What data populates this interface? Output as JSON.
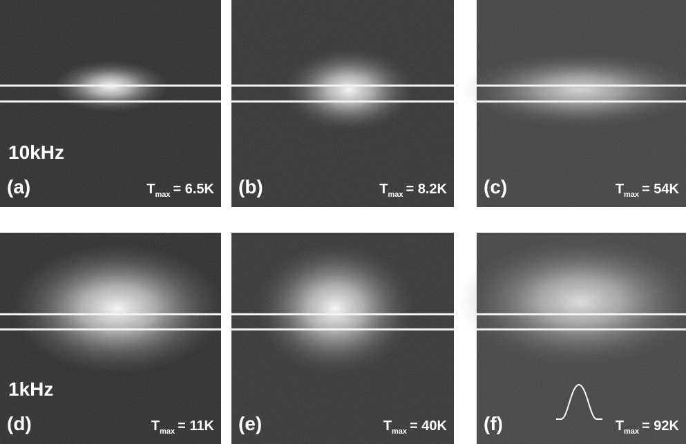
{
  "panels": [
    {
      "label": "(a)",
      "row_label": "10kHz",
      "tmax_symbol": "T",
      "tmax_subscript": "max",
      "tmax_value": "= 6.5K"
    },
    {
      "label": "(b)",
      "tmax_symbol": "T",
      "tmax_subscript": "max",
      "tmax_value": "= 8.2K"
    },
    {
      "label": "(c)",
      "tmax_symbol": "T",
      "tmax_subscript": "max",
      "tmax_value": "= 54K"
    },
    {
      "label": "(d)",
      "row_label": "1kHz",
      "tmax_symbol": "T",
      "tmax_subscript": "max",
      "tmax_value": "= 11K"
    },
    {
      "label": "(e)",
      "tmax_symbol": "T",
      "tmax_subscript": "max",
      "tmax_value": "= 40K"
    },
    {
      "label": "(f)",
      "tmax_symbol": "T",
      "tmax_subscript": "max",
      "tmax_value": "= 92K"
    }
  ]
}
